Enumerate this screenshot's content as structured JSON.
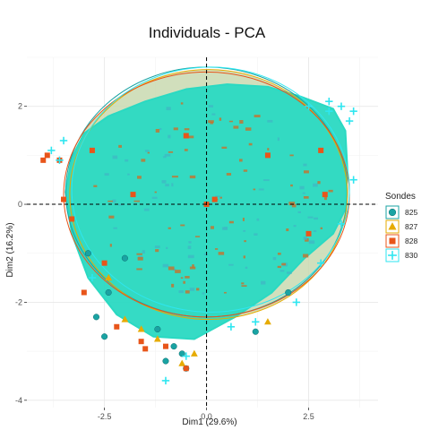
{
  "chart_data": {
    "type": "scatter",
    "title": "Individuals - PCA",
    "xlabel": "Dim1 (29.6%)",
    "ylabel": "Dim2 (16.2%)",
    "xlim": [
      -4.4,
      4.2
    ],
    "ylim": [
      -4.15,
      3.0
    ],
    "x_ticks": [
      -2.5,
      0.0,
      2.5
    ],
    "y_ticks": [
      2,
      0,
      -2,
      -4
    ],
    "x_tick_labels": [
      "-2.5",
      "0.0",
      "2.5"
    ],
    "y_tick_labels": [
      "2",
      "0",
      "-2",
      "-4"
    ],
    "grid": true,
    "reference_lines": {
      "x": 0,
      "y": 0,
      "style": "dashed"
    },
    "legend": {
      "title": "Sondes",
      "position": "right"
    },
    "series": [
      {
        "name": "825",
        "marker": "circle",
        "color": "#1aa3a3",
        "ellipse": {
          "cx": 0.0,
          "cy": 0.25,
          "rx": 3.45,
          "ry": 2.55
        },
        "points": [
          [
            -2.7,
            -2.3
          ],
          [
            -2.5,
            -2.7
          ],
          [
            -1.0,
            -3.2
          ],
          [
            -0.6,
            -3.05
          ],
          [
            -0.5,
            -3.35
          ],
          [
            -1.2,
            -2.55
          ],
          [
            -2.4,
            -1.8
          ],
          [
            -2.0,
            -1.1
          ],
          [
            -0.8,
            -2.9
          ],
          [
            2.0,
            -1.8
          ],
          [
            1.2,
            -2.6
          ],
          [
            -2.9,
            -1.0
          ]
        ]
      },
      {
        "name": "827",
        "marker": "triangle",
        "color": "#e6ab02",
        "ellipse": {
          "cx": 0.05,
          "cy": 0.2,
          "rx": 3.4,
          "ry": 2.55
        },
        "points": [
          [
            -0.3,
            -3.05
          ],
          [
            -2.0,
            -2.35
          ],
          [
            -0.6,
            -3.25
          ],
          [
            -1.6,
            -2.55
          ],
          [
            -2.4,
            -1.5
          ],
          [
            1.5,
            -2.4
          ],
          [
            -1.2,
            -2.75
          ]
        ]
      },
      {
        "name": "828",
        "marker": "square",
        "color": "#e8551a",
        "ellipse": {
          "cx": 0.0,
          "cy": 0.2,
          "rx": 3.5,
          "ry": 2.5
        },
        "points": [
          [
            -3.6,
            0.9
          ],
          [
            -3.9,
            1.0
          ],
          [
            -4.0,
            0.9
          ],
          [
            -3.5,
            0.1
          ],
          [
            -3.3,
            -0.3
          ],
          [
            -2.8,
            1.1
          ],
          [
            -2.5,
            -1.2
          ],
          [
            -3.0,
            -1.8
          ],
          [
            -1.6,
            -2.8
          ],
          [
            -1.5,
            -2.95
          ],
          [
            -1.0,
            -2.9
          ],
          [
            -0.5,
            -3.35
          ],
          [
            0.0,
            0.0
          ],
          [
            0.2,
            0.1
          ],
          [
            1.5,
            1.0
          ],
          [
            2.8,
            1.1
          ],
          [
            2.5,
            -0.6
          ],
          [
            2.9,
            0.2
          ],
          [
            -1.8,
            0.2
          ],
          [
            -0.5,
            1.4
          ],
          [
            -2.2,
            -2.5
          ]
        ]
      },
      {
        "name": "830",
        "marker": "plus",
        "color": "#2ee6f0",
        "ellipse": {
          "cx": 0.1,
          "cy": 0.3,
          "rx": 3.4,
          "ry": 2.5
        },
        "points": [
          [
            3.6,
            1.9
          ],
          [
            3.3,
            2.0
          ],
          [
            3.5,
            1.7
          ],
          [
            3.0,
            2.1
          ],
          [
            3.6,
            0.5
          ],
          [
            3.3,
            -0.4
          ],
          [
            2.8,
            -1.2
          ],
          [
            2.2,
            -2.0
          ],
          [
            -3.5,
            1.3
          ],
          [
            -3.8,
            1.1
          ],
          [
            -3.6,
            0.9
          ],
          [
            -2.8,
            -1.5
          ],
          [
            -1.0,
            -3.6
          ],
          [
            -0.5,
            -3.1
          ],
          [
            1.2,
            -2.4
          ],
          [
            3.0,
            1.9
          ],
          [
            2.5,
            2.0
          ],
          [
            0.6,
            -2.5
          ]
        ]
      }
    ]
  },
  "cloud": {
    "color": "#2ad9c2",
    "outline": [
      [
        -3.45,
        0.25
      ],
      [
        -3.3,
        0.95
      ],
      [
        -3.0,
        1.45
      ],
      [
        -2.4,
        1.8
      ],
      [
        -1.5,
        2.1
      ],
      [
        -0.5,
        2.35
      ],
      [
        0.5,
        2.45
      ],
      [
        1.5,
        2.4
      ],
      [
        2.3,
        2.2
      ],
      [
        3.1,
        1.95
      ],
      [
        3.4,
        1.5
      ],
      [
        3.45,
        0.7
      ],
      [
        3.4,
        -0.1
      ],
      [
        3.1,
        -0.6
      ],
      [
        2.4,
        -1.1
      ],
      [
        1.6,
        -1.8
      ],
      [
        0.7,
        -2.3
      ],
      [
        -0.3,
        -2.75
      ],
      [
        -1.3,
        -2.7
      ],
      [
        -2.2,
        -2.25
      ],
      [
        -2.9,
        -1.5
      ],
      [
        -3.3,
        -0.6
      ]
    ],
    "fill_ellipse": {
      "cx": 0.0,
      "cy": 0.2,
      "rx": 3.45,
      "ry": 2.55,
      "color": "#c9d9b0"
    }
  }
}
